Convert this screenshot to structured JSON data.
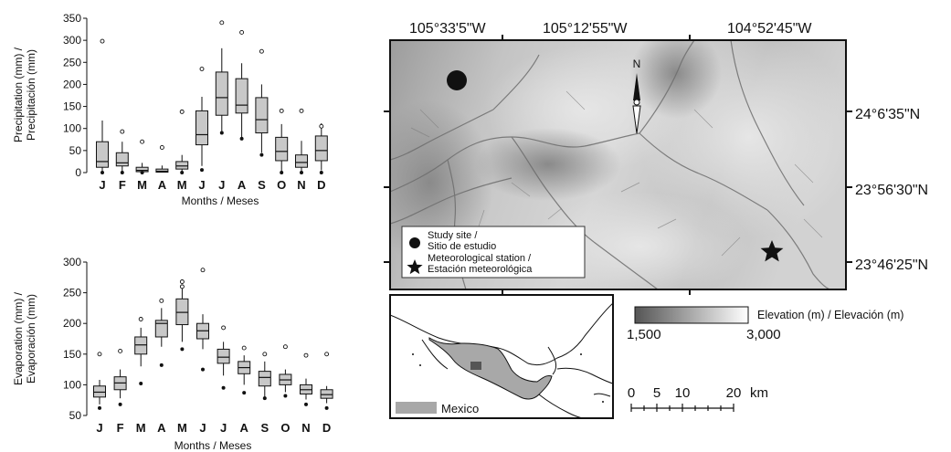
{
  "chart_data": [
    {
      "type": "box",
      "ylabel": "Precipitation (mm) /\nPrecipitación (mm)",
      "xlabel": "Months / Meses",
      "ylim": [
        0,
        350
      ],
      "yticks": [
        0,
        50,
        100,
        150,
        200,
        250,
        300,
        350
      ],
      "categories": [
        "J",
        "F",
        "M",
        "A",
        "M",
        "J",
        "J",
        "A",
        "S",
        "O",
        "N",
        "D"
      ],
      "boxes": [
        {
          "q1": 12,
          "median": 25,
          "q3": 70,
          "whisker_low": 0,
          "whisker_high": 118,
          "outliers_high": [
            298
          ],
          "outliers_low": [
            0
          ]
        },
        {
          "q1": 15,
          "median": 22,
          "q3": 45,
          "whisker_low": 0,
          "whisker_high": 70,
          "outliers_high": [
            93
          ],
          "outliers_low": [
            0
          ]
        },
        {
          "q1": 2,
          "median": 5,
          "q3": 12,
          "whisker_low": 0,
          "whisker_high": 22,
          "outliers_high": [
            70
          ],
          "outliers_low": [
            0
          ]
        },
        {
          "q1": 1,
          "median": 3,
          "q3": 8,
          "whisker_low": 0,
          "whisker_high": 16,
          "outliers_high": [
            57
          ],
          "outliers_low": []
        },
        {
          "q1": 8,
          "median": 15,
          "q3": 25,
          "whisker_low": 0,
          "whisker_high": 40,
          "outliers_high": [
            138
          ],
          "outliers_low": [
            0
          ]
        },
        {
          "q1": 63,
          "median": 86,
          "q3": 140,
          "whisker_low": 15,
          "whisker_high": 172,
          "outliers_high": [
            235
          ],
          "outliers_low": [
            6
          ]
        },
        {
          "q1": 130,
          "median": 170,
          "q3": 228,
          "whisker_low": 92,
          "whisker_high": 282,
          "outliers_high": [
            340
          ],
          "outliers_low": [
            90
          ]
        },
        {
          "q1": 135,
          "median": 153,
          "q3": 213,
          "whisker_low": 80,
          "whisker_high": 248,
          "outliers_high": [
            318
          ],
          "outliers_low": [
            77
          ]
        },
        {
          "q1": 90,
          "median": 120,
          "q3": 170,
          "whisker_low": 45,
          "whisker_high": 200,
          "outliers_high": [
            275
          ],
          "outliers_low": [
            40
          ]
        },
        {
          "q1": 27,
          "median": 48,
          "q3": 80,
          "whisker_low": 0,
          "whisker_high": 110,
          "outliers_high": [
            140
          ],
          "outliers_low": [
            0
          ]
        },
        {
          "q1": 12,
          "median": 23,
          "q3": 40,
          "whisker_low": 0,
          "whisker_high": 72,
          "outliers_high": [
            140
          ],
          "outliers_low": [
            0
          ]
        },
        {
          "q1": 27,
          "median": 50,
          "q3": 83,
          "whisker_low": 5,
          "whisker_high": 112,
          "outliers_high": [
            105
          ],
          "outliers_low": [
            0
          ]
        }
      ]
    },
    {
      "type": "box",
      "ylabel": "Evaporation (mm) /\nEvaporación (mm)",
      "xlabel": "Months / Meses",
      "ylim": [
        50,
        300
      ],
      "yticks": [
        50,
        100,
        150,
        200,
        250,
        300
      ],
      "categories": [
        "J",
        "F",
        "M",
        "A",
        "M",
        "J",
        "J",
        "A",
        "S",
        "O",
        "N",
        "D"
      ],
      "boxes": [
        {
          "q1": 80,
          "median": 88,
          "q3": 98,
          "whisker_low": 68,
          "whisker_high": 108,
          "outliers_high": [
            150
          ],
          "outliers_low": [
            62
          ]
        },
        {
          "q1": 92,
          "median": 103,
          "q3": 113,
          "whisker_low": 78,
          "whisker_high": 125,
          "outliers_high": [
            155
          ],
          "outliers_low": [
            68
          ]
        },
        {
          "q1": 150,
          "median": 165,
          "q3": 178,
          "whisker_low": 130,
          "whisker_high": 193,
          "outliers_high": [
            207
          ],
          "outliers_low": [
            102
          ]
        },
        {
          "q1": 178,
          "median": 200,
          "q3": 205,
          "whisker_low": 162,
          "whisker_high": 225,
          "outliers_high": [
            237
          ],
          "outliers_low": [
            132
          ]
        },
        {
          "q1": 198,
          "median": 218,
          "q3": 240,
          "whisker_low": 170,
          "whisker_high": 257,
          "outliers_high": [
            268,
            260
          ],
          "outliers_low": [
            158
          ]
        },
        {
          "q1": 175,
          "median": 188,
          "q3": 200,
          "whisker_low": 158,
          "whisker_high": 215,
          "outliers_high": [
            287
          ],
          "outliers_low": [
            125
          ]
        },
        {
          "q1": 135,
          "median": 145,
          "q3": 158,
          "whisker_low": 115,
          "whisker_high": 170,
          "outliers_high": [
            193
          ],
          "outliers_low": [
            95
          ]
        },
        {
          "q1": 118,
          "median": 128,
          "q3": 138,
          "whisker_low": 100,
          "whisker_high": 148,
          "outliers_high": [
            160
          ],
          "outliers_low": [
            87
          ]
        },
        {
          "q1": 98,
          "median": 112,
          "q3": 122,
          "whisker_low": 80,
          "whisker_high": 138,
          "outliers_high": [
            150
          ],
          "outliers_low": [
            78
          ]
        },
        {
          "q1": 100,
          "median": 108,
          "q3": 117,
          "whisker_low": 88,
          "whisker_high": 125,
          "outliers_high": [
            162
          ],
          "outliers_low": [
            82
          ]
        },
        {
          "q1": 85,
          "median": 92,
          "q3": 100,
          "whisker_low": 76,
          "whisker_high": 110,
          "outliers_high": [
            148
          ],
          "outliers_low": [
            68
          ]
        },
        {
          "q1": 78,
          "median": 84,
          "q3": 92,
          "whisker_low": 70,
          "whisker_high": 98,
          "outliers_high": [
            150
          ],
          "outliers_low": [
            62
          ]
        }
      ]
    }
  ],
  "map": {
    "longitudes": [
      "105°33'5\"W",
      "105°12'55\"W",
      "104°52'45\"W"
    ],
    "latitudes": [
      "24°6'35\"N",
      "23°56'30\"N",
      "23°46'25\"N"
    ],
    "north_label": "N",
    "legend": {
      "study_site": "Study site /\nSitio de estudio",
      "station": "Meteorological station /\nEstación meteorológica"
    },
    "elevation": {
      "title": "Elevation (m) / Elevación (m)",
      "min_label": "1,500",
      "max_label": "3,000",
      "color_low": "#555555",
      "color_high": "#ffffff"
    },
    "scale": {
      "ticks": [
        "0",
        "5",
        "10",
        "20"
      ],
      "unit": "km"
    },
    "inset": {
      "label": "Mexico",
      "fill": "#a8a8a8"
    }
  }
}
